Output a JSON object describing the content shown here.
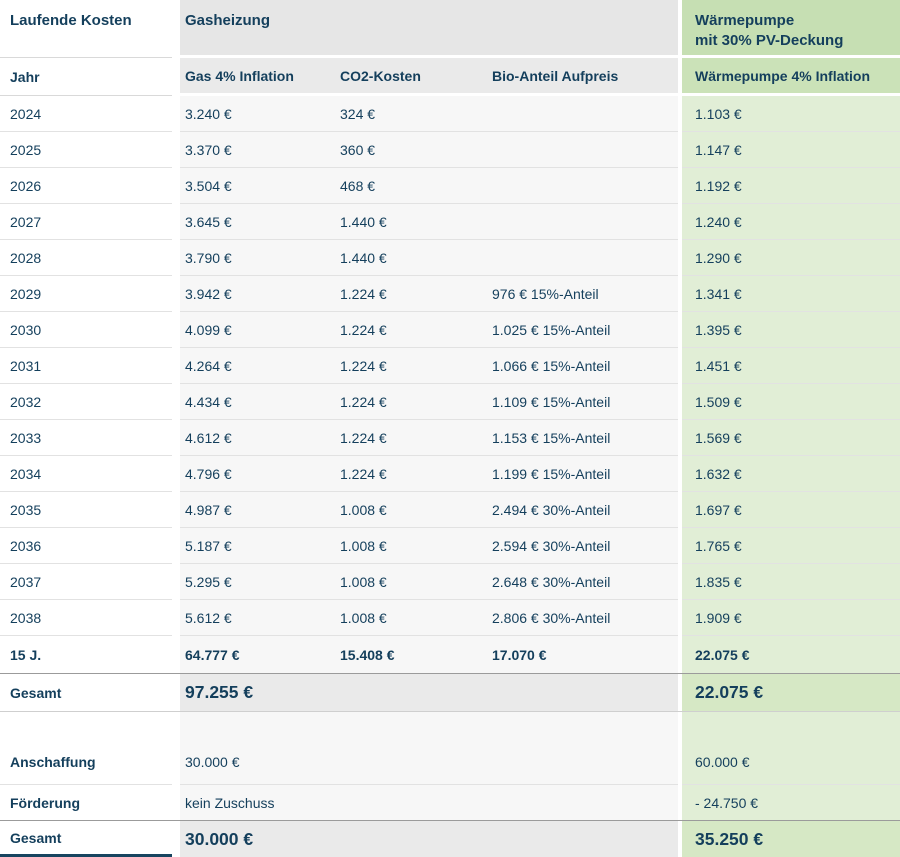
{
  "colors": {
    "text_navy": "#143f5c",
    "gas_header_bg": "#e6e6e6",
    "gas_subheader_bg": "#eaeaea",
    "gas_row_bg": "#f7f7f7",
    "gas_total_bg": "#eaeaea",
    "wp_header_bg": "#c6dfb3",
    "wp_subheader_bg": "#cbe2b8",
    "wp_row_bg": "#e1eed6",
    "wp_total_bg": "#d6e8c5",
    "heavy_border": "#9b9b9b",
    "row_border": "#e2e2e2",
    "label_bottom_border": "#17445f"
  },
  "table": {
    "section_titles": {
      "left": "Laufende Kosten",
      "gas": "Gasheizung",
      "wp_line1": "Wärmepumpe",
      "wp_line2": "mit 30% PV-Deckung"
    },
    "columns": {
      "jahr": "Jahr",
      "gas": "Gas 4% Inflation",
      "co2": "CO2-Kosten",
      "bio": "Bio-Anteil Aufpreis",
      "wp": "Wärmepumpe 4% Inflation"
    },
    "rows": [
      {
        "jahr": "2024",
        "gas": "3.240 €",
        "co2": "324 €",
        "bio": "",
        "wp": "1.103 €"
      },
      {
        "jahr": "2025",
        "gas": "3.370 €",
        "co2": "360 €",
        "bio": "",
        "wp": "1.147 €"
      },
      {
        "jahr": "2026",
        "gas": "3.504 €",
        "co2": "468 €",
        "bio": "",
        "wp": "1.192 €"
      },
      {
        "jahr": "2027",
        "gas": "3.645 €",
        "co2": "1.440 €",
        "bio": "",
        "wp": "1.240 €"
      },
      {
        "jahr": "2028",
        "gas": "3.790 €",
        "co2": "1.440 €",
        "bio": "",
        "wp": "1.290 €"
      },
      {
        "jahr": "2029",
        "gas": "3.942 €",
        "co2": "1.224 €",
        "bio": "976 € 15%-Anteil",
        "wp": "1.341 €"
      },
      {
        "jahr": "2030",
        "gas": "4.099 €",
        "co2": "1.224 €",
        "bio": "1.025 € 15%-Anteil",
        "wp": "1.395 €"
      },
      {
        "jahr": "2031",
        "gas": "4.264 €",
        "co2": "1.224 €",
        "bio": "1.066 € 15%-Anteil",
        "wp": "1.451 €"
      },
      {
        "jahr": "2032",
        "gas": "4.434 €",
        "co2": "1.224 €",
        "bio": "1.109 € 15%-Anteil",
        "wp": "1.509 €"
      },
      {
        "jahr": "2033",
        "gas": "4.612 €",
        "co2": "1.224 €",
        "bio": "1.153 € 15%-Anteil",
        "wp": "1.569 €"
      },
      {
        "jahr": "2034",
        "gas": "4.796 €",
        "co2": "1.224 €",
        "bio": "1.199 € 15%-Anteil",
        "wp": "1.632 €"
      },
      {
        "jahr": "2035",
        "gas": "4.987 €",
        "co2": "1.008 €",
        "bio": "2.494 € 30%-Anteil",
        "wp": "1.697 €"
      },
      {
        "jahr": "2036",
        "gas": "5.187 €",
        "co2": "1.008 €",
        "bio": "2.594 € 30%-Anteil",
        "wp": "1.765 €"
      },
      {
        "jahr": "2037",
        "gas": "5.295 €",
        "co2": "1.008 €",
        "bio": "2.648 € 30%-Anteil",
        "wp": "1.835 €"
      },
      {
        "jahr": "2038",
        "gas": "5.612 €",
        "co2": "1.008 €",
        "bio": "2.806 € 30%-Anteil",
        "wp": "1.909 €"
      }
    ],
    "sum_15y": {
      "jahr": "15 J.",
      "gas": "64.777 €",
      "co2": "15.408 €",
      "bio": "17.070 €",
      "wp": "22.075 €"
    },
    "running_total": {
      "label": "Gesamt",
      "gas": "97.255 €",
      "wp": "22.075 €"
    },
    "purchase": {
      "label": "Anschaffung",
      "gas": "30.000 €",
      "wp": "60.000 €"
    },
    "subsidy": {
      "label": "Förderung",
      "gas": "kein Zuschuss",
      "wp": "- 24.750 €"
    },
    "grand_total": {
      "label": "Gesamt",
      "gas": "30.000 €",
      "wp": "35.250 €"
    }
  }
}
